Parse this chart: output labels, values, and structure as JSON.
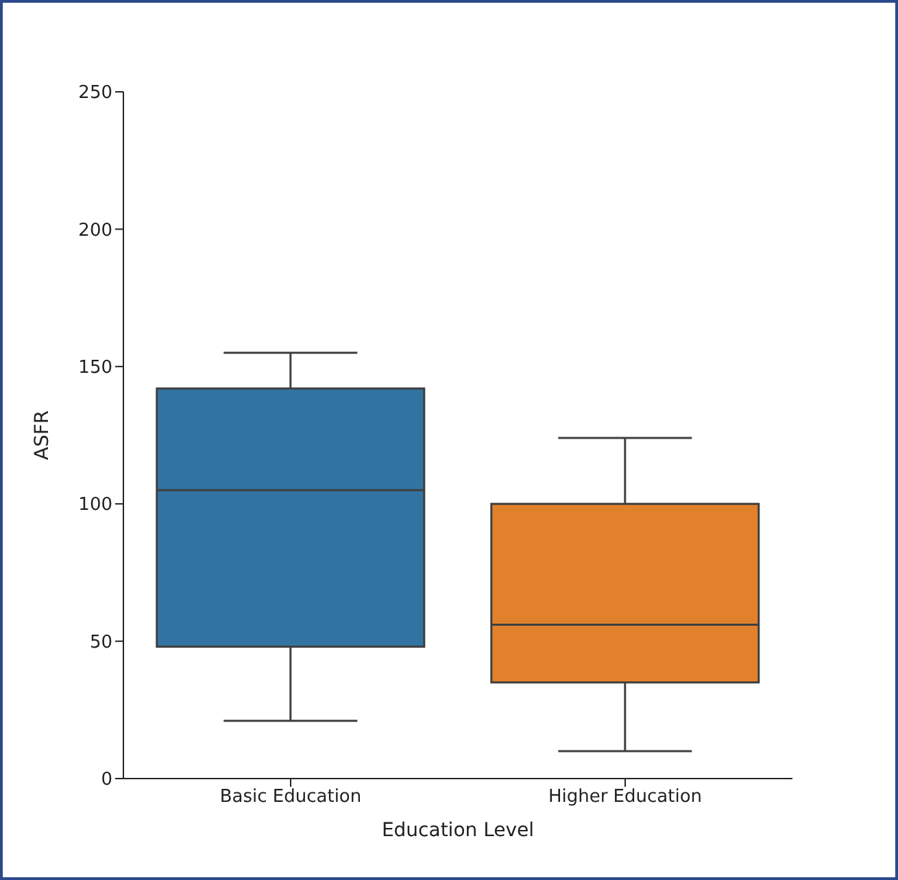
{
  "chart_data": {
    "type": "box",
    "xlabel": "Education Level",
    "ylabel": "ASFR",
    "categories": [
      "Basic Education",
      "Higher Education"
    ],
    "colors": [
      "#3274a1",
      "#e1812c"
    ],
    "boxes": [
      {
        "low": 21,
        "q1": 48,
        "median": 105,
        "q3": 142,
        "high": 155
      },
      {
        "low": 10,
        "q1": 35,
        "median": 56,
        "q3": 100,
        "high": 124
      }
    ],
    "ylim": [
      0,
      250
    ],
    "yticks": [
      0,
      50,
      100,
      150,
      200,
      250
    ],
    "grid": false
  }
}
